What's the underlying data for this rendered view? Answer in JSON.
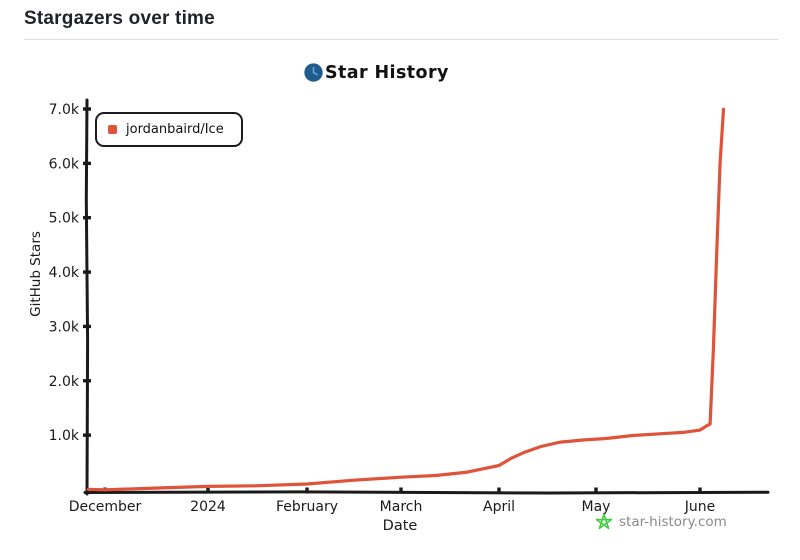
{
  "header": {
    "title": "Stargazers over time"
  },
  "logo": {
    "text": "Star History",
    "icon": "clock-icon",
    "icon_color": "#1d5c8d",
    "icon_detail_color": "#6ea4cc"
  },
  "watermark": {
    "text": "star-history.com",
    "icon": "star-icon",
    "icon_color": "#41cc41",
    "text_color": "#8a8a8a"
  },
  "chart_data": {
    "type": "line",
    "title": "Star History",
    "xlabel": "Date",
    "ylabel": "GitHub Stars",
    "grid": false,
    "legend_position": "top-left",
    "ylim": [
      0,
      7000
    ],
    "xlim": [
      "2023-11-26",
      "2024-06-08"
    ],
    "x_ticks": [
      {
        "label": "December",
        "date": "2023-12-01"
      },
      {
        "label": "2024",
        "date": "2024-01-01"
      },
      {
        "label": "February",
        "date": "2024-02-01"
      },
      {
        "label": "March",
        "date": "2024-03-01"
      },
      {
        "label": "April",
        "date": "2024-04-01"
      },
      {
        "label": "May",
        "date": "2024-05-01"
      },
      {
        "label": "June",
        "date": "2024-06-01"
      }
    ],
    "y_ticks": [
      {
        "label": "1.0k",
        "value": 1000
      },
      {
        "label": "2.0k",
        "value": 2000
      },
      {
        "label": "3.0k",
        "value": 3000
      },
      {
        "label": "4.0k",
        "value": 4000
      },
      {
        "label": "5.0k",
        "value": 5000
      },
      {
        "label": "6.0k",
        "value": 6000
      },
      {
        "label": "7.0k",
        "value": 7000
      }
    ],
    "series": [
      {
        "name": "jordanbaird/Ice",
        "color": "#e0533b",
        "points": [
          [
            "2023-11-26",
            4
          ],
          [
            "2023-12-01",
            8
          ],
          [
            "2023-12-16",
            22
          ],
          [
            "2024-01-01",
            45
          ],
          [
            "2024-01-16",
            75
          ],
          [
            "2024-02-01",
            112
          ],
          [
            "2024-02-15",
            160
          ],
          [
            "2024-03-01",
            218
          ],
          [
            "2024-03-12",
            268
          ],
          [
            "2024-03-22",
            325
          ],
          [
            "2024-04-01",
            430
          ],
          [
            "2024-04-05",
            580
          ],
          [
            "2024-04-09",
            700
          ],
          [
            "2024-04-14",
            790
          ],
          [
            "2024-04-20",
            860
          ],
          [
            "2024-04-27",
            915
          ],
          [
            "2024-05-04",
            950
          ],
          [
            "2024-05-12",
            985
          ],
          [
            "2024-05-20",
            1015
          ],
          [
            "2024-05-27",
            1060
          ],
          [
            "2024-06-01",
            1100
          ],
          [
            "2024-06-03",
            1160
          ],
          [
            "2024-06-04",
            1200
          ],
          [
            "2024-06-05",
            2600
          ],
          [
            "2024-06-06",
            4400
          ],
          [
            "2024-06-07",
            6000
          ],
          [
            "2024-06-08",
            7000
          ]
        ]
      }
    ]
  }
}
